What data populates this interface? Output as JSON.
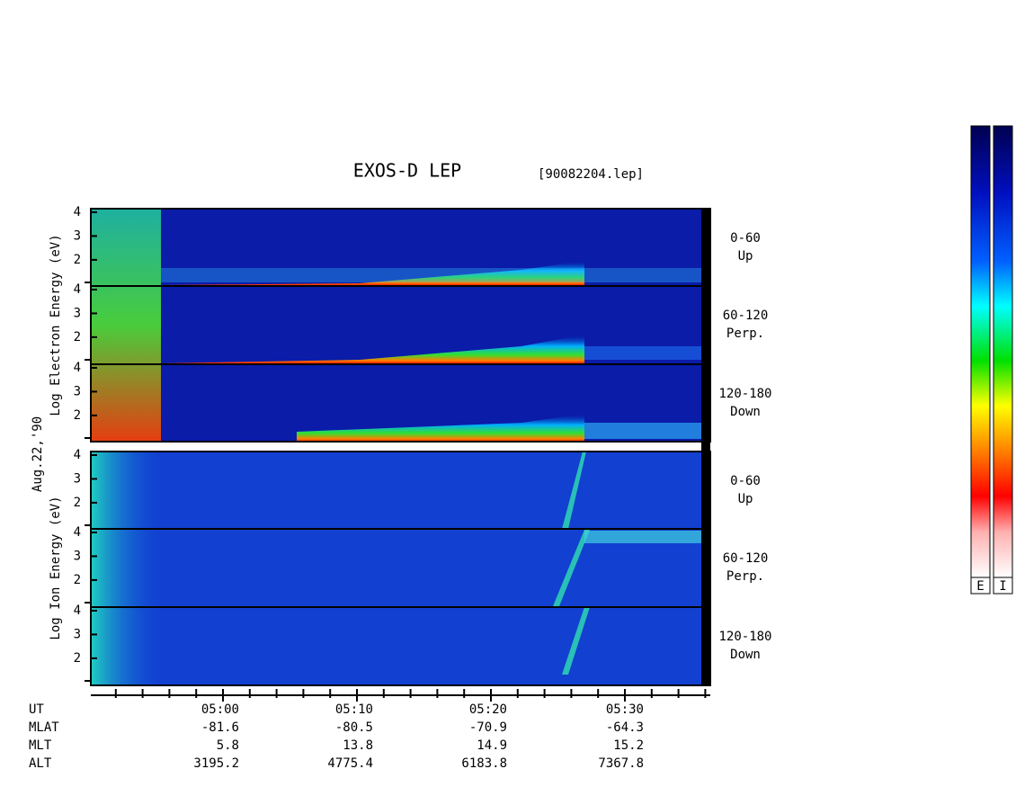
{
  "title": "EXOS-D LEP",
  "file": "[90082204.lep]",
  "date": "Aug.22,'90",
  "electron": {
    "ylabel": "Log Electron Energy (eV)",
    "ylim": [
      0.9,
      4.15
    ],
    "yticks": [
      2,
      3,
      4
    ],
    "panels": [
      {
        "angle": "0-60",
        "direction": "Up"
      },
      {
        "angle": "60-120",
        "direction": "Perp."
      },
      {
        "angle": "120-180",
        "direction": "Down"
      }
    ]
  },
  "ion": {
    "ylabel": "Log Ion Energy (eV)",
    "ylim": [
      0.9,
      4.15
    ],
    "yticks": [
      2,
      3,
      4
    ],
    "panels": [
      {
        "angle": "0-60",
        "direction": "Up"
      },
      {
        "angle": "60-120",
        "direction": "Perp."
      },
      {
        "angle": "120-180",
        "direction": "Down"
      }
    ]
  },
  "ephemeris": [
    {
      "name": "UT",
      "values": [
        "05:00",
        "05:10",
        "05:20",
        "05:30"
      ]
    },
    {
      "name": "MLAT",
      "values": [
        -81.6,
        -80.5,
        -70.9,
        -64.3
      ]
    },
    {
      "name": "MLT",
      "values": [
        5.8,
        13.8,
        14.9,
        15.2
      ]
    },
    {
      "name": "ALT",
      "values": [
        3195.2,
        4775.4,
        6183.8,
        7367.8
      ]
    }
  ],
  "colorbars": [
    "E",
    "I"
  ]
}
